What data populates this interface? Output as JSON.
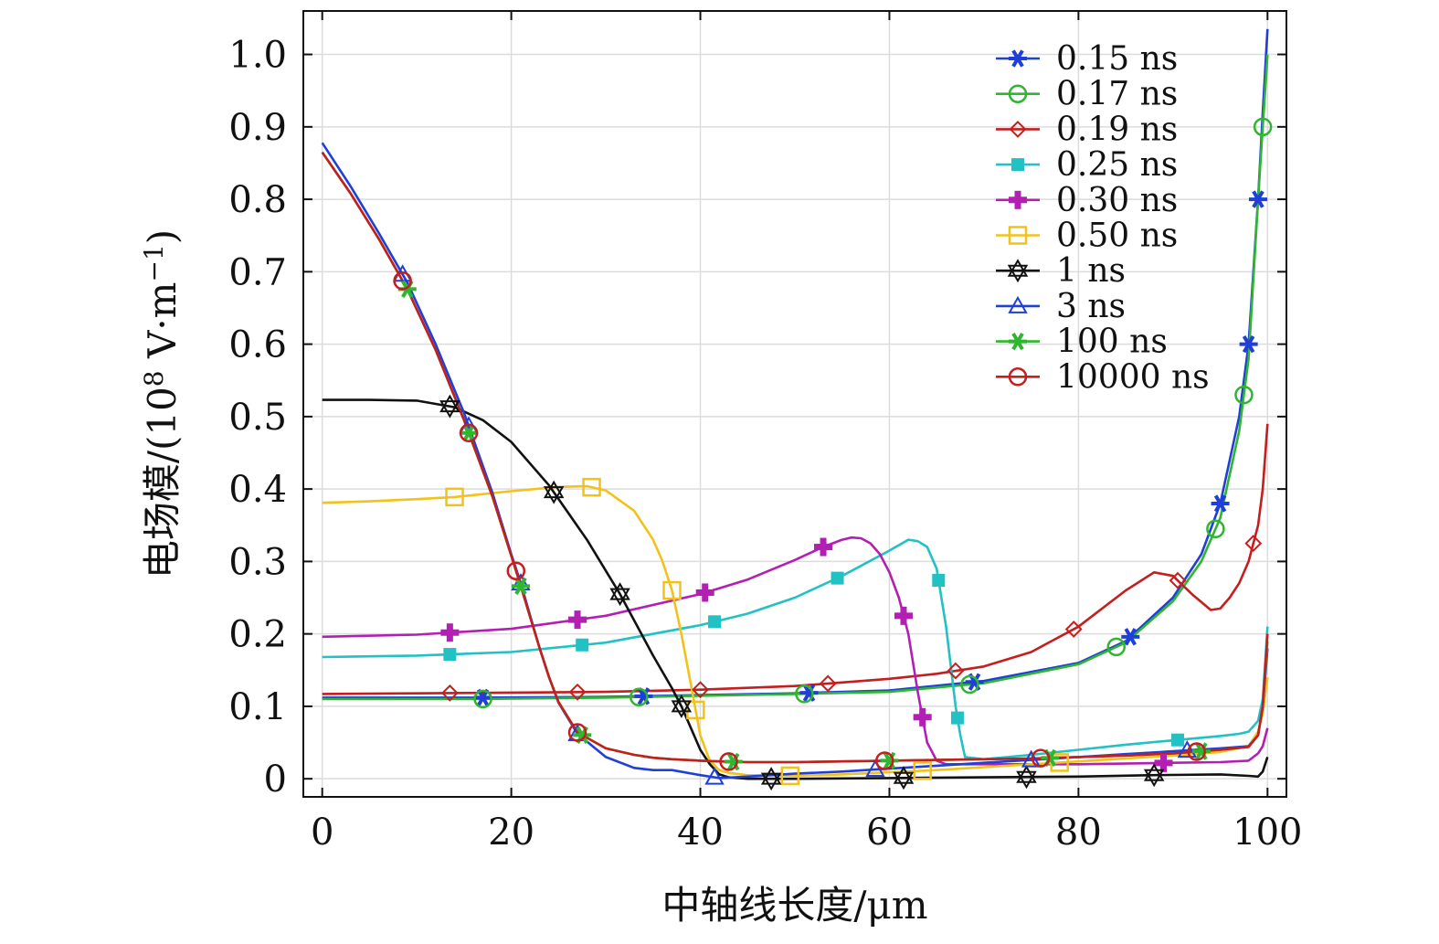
{
  "chart_data": {
    "type": "line",
    "title": "",
    "xlabel": "中轴线长度/μm",
    "ylabel": "电场模/(10⁸ V·m⁻¹)",
    "ylabel_parts": {
      "prefix": "电场模/(10",
      "exp1": "8",
      "mid": " V·m",
      "exp2": "−1",
      "suffix": ")"
    },
    "xlim": [
      -2,
      102
    ],
    "ylim": [
      -0.025,
      1.06
    ],
    "xticks": [
      0,
      20,
      40,
      60,
      80,
      100
    ],
    "xtick_labels": [
      "0",
      "20",
      "40",
      "60",
      "80",
      "100"
    ],
    "yticks": [
      0,
      0.1,
      0.2,
      0.3,
      0.4,
      0.5,
      0.6,
      0.7,
      0.8,
      0.9,
      1.0
    ],
    "ytick_labels": [
      "0",
      "0.1",
      "0.2",
      "0.3",
      "0.4",
      "0.5",
      "0.6",
      "0.7",
      "0.8",
      "0.9",
      "1.0"
    ],
    "grid": true,
    "legend_position": "top-right",
    "series": [
      {
        "name": "0.15 ns",
        "color": "#1f3fd8",
        "marker": "asterisk",
        "x": [
          0,
          10,
          16,
          30,
          50,
          60,
          70,
          80,
          85,
          90,
          93,
          95,
          97,
          98,
          99,
          99.5,
          100
        ],
        "y": [
          0.112,
          0.112,
          0.112,
          0.113,
          0.118,
          0.122,
          0.135,
          0.16,
          0.19,
          0.25,
          0.31,
          0.38,
          0.5,
          0.6,
          0.8,
          0.92,
          1.035
        ],
        "markers_x": [
          17,
          34,
          51.5,
          69,
          85.5,
          95,
          98,
          99
        ]
      },
      {
        "name": "0.17 ns",
        "color": "#2fb52f",
        "marker": "circle-open",
        "x": [
          0,
          10,
          16,
          30,
          50,
          60,
          70,
          80,
          85,
          90,
          93,
          95,
          97,
          98,
          99,
          99.5,
          100
        ],
        "y": [
          0.11,
          0.11,
          0.11,
          0.112,
          0.117,
          0.12,
          0.132,
          0.158,
          0.188,
          0.245,
          0.3,
          0.36,
          0.48,
          0.58,
          0.8,
          0.9,
          1.0
        ],
        "markers_x": [
          17,
          33.5,
          51,
          68.5,
          84,
          94.5,
          97.5,
          99.5
        ]
      },
      {
        "name": "0.19 ns",
        "color": "#c41e1e",
        "marker": "diamond-open",
        "x": [
          0,
          10,
          20,
          30,
          40,
          50,
          55,
          60,
          65,
          70,
          75,
          80,
          85,
          88,
          90,
          92,
          94,
          95,
          96,
          97,
          98,
          99,
          99.5,
          100
        ],
        "y": [
          0.117,
          0.118,
          0.119,
          0.12,
          0.123,
          0.128,
          0.133,
          0.138,
          0.145,
          0.155,
          0.175,
          0.21,
          0.26,
          0.285,
          0.28,
          0.255,
          0.233,
          0.235,
          0.25,
          0.27,
          0.3,
          0.35,
          0.4,
          0.49
        ],
        "markers_x": [
          13.5,
          27,
          40,
          53.5,
          67,
          79.5,
          90.5,
          98.5
        ]
      },
      {
        "name": "0.25 ns",
        "color": "#22c1c3",
        "marker": "square-filled",
        "x": [
          0,
          10,
          20,
          30,
          40,
          45,
          50,
          55,
          60,
          62,
          63,
          64,
          65,
          66,
          67,
          67.5,
          68,
          70,
          75,
          80,
          85,
          90,
          95,
          97,
          98,
          99,
          99.5,
          100
        ],
        "y": [
          0.168,
          0.17,
          0.175,
          0.188,
          0.212,
          0.228,
          0.25,
          0.28,
          0.315,
          0.33,
          0.328,
          0.32,
          0.29,
          0.21,
          0.1,
          0.06,
          0.03,
          0.027,
          0.033,
          0.04,
          0.047,
          0.053,
          0.059,
          0.062,
          0.065,
          0.08,
          0.11,
          0.21
        ],
        "markers_x": [
          13.5,
          27.5,
          41.5,
          54.5,
          65.2,
          67.2,
          90.5
        ]
      },
      {
        "name": "0.30 ns",
        "color": "#b31fb3",
        "marker": "plus-filled",
        "x": [
          0,
          10,
          20,
          30,
          40,
          45,
          50,
          53,
          55,
          56,
          57,
          58,
          59,
          60,
          61,
          62,
          63,
          64,
          65,
          66,
          70,
          80,
          90,
          95,
          98,
          99,
          99.5,
          100
        ],
        "y": [
          0.196,
          0.199,
          0.207,
          0.225,
          0.255,
          0.275,
          0.302,
          0.32,
          0.33,
          0.333,
          0.332,
          0.325,
          0.31,
          0.285,
          0.25,
          0.2,
          0.12,
          0.05,
          0.025,
          0.02,
          0.02,
          0.02,
          0.022,
          0.023,
          0.025,
          0.035,
          0.045,
          0.07
        ],
        "markers_x": [
          13.5,
          27,
          40.5,
          53,
          61.5,
          63.5,
          89
        ]
      },
      {
        "name": "0.50 ns",
        "color": "#f2c21b",
        "marker": "square-open",
        "x": [
          0,
          5,
          10,
          14,
          20,
          25,
          28,
          30,
          33,
          35,
          36,
          37,
          38,
          39,
          40,
          41,
          42,
          43,
          45,
          50,
          55,
          60,
          65,
          70,
          75,
          80,
          90,
          95,
          98,
          99,
          99.5,
          100
        ],
        "y": [
          0.381,
          0.383,
          0.386,
          0.389,
          0.397,
          0.403,
          0.404,
          0.398,
          0.37,
          0.33,
          0.3,
          0.26,
          0.2,
          0.13,
          0.06,
          0.025,
          0.012,
          0.008,
          0.005,
          0.004,
          0.006,
          0.009,
          0.012,
          0.016,
          0.02,
          0.024,
          0.032,
          0.037,
          0.045,
          0.065,
          0.09,
          0.14
        ],
        "markers_x": [
          14,
          28.5,
          37,
          39.5,
          49.5,
          63.5,
          78
        ]
      },
      {
        "name": "1 ns",
        "color": "#111111",
        "marker": "star-open",
        "x": [
          0,
          5,
          10,
          14,
          17,
          20,
          24,
          28,
          31.5,
          35,
          37,
          38,
          39,
          40,
          41,
          42,
          43,
          45,
          50,
          60,
          70,
          80,
          88,
          95,
          98,
          99,
          99.5,
          100
        ],
        "y": [
          0.523,
          0.523,
          0.522,
          0.513,
          0.495,
          0.465,
          0.405,
          0.33,
          0.255,
          0.17,
          0.125,
          0.1,
          0.07,
          0.04,
          0.02,
          0.006,
          0.002,
          0,
          0,
          0.001,
          0.002,
          0.003,
          0.005,
          0.006,
          0.004,
          0.003,
          0.01,
          0.03
        ],
        "markers_x": [
          13.5,
          24.5,
          31.5,
          38,
          47.5,
          61.5,
          74.5,
          88
        ]
      },
      {
        "name": "3 ns",
        "color": "#1f3fd8",
        "marker": "triangle-open",
        "x": [
          0,
          3,
          6,
          9,
          12,
          15,
          18,
          20,
          21,
          22,
          23,
          24,
          25,
          27,
          30,
          33,
          35,
          37,
          40,
          42,
          45,
          50,
          55,
          60,
          65,
          70,
          75,
          80,
          85,
          90,
          95,
          98,
          99,
          99.5,
          100
        ],
        "y": [
          0.878,
          0.818,
          0.753,
          0.685,
          0.6,
          0.505,
          0.395,
          0.31,
          0.27,
          0.225,
          0.18,
          0.14,
          0.105,
          0.062,
          0.03,
          0.015,
          0.012,
          0.012,
          0.005,
          0.001,
          0.003,
          0.007,
          0.01,
          0.014,
          0.018,
          0.022,
          0.026,
          0.03,
          0.034,
          0.038,
          0.042,
          0.045,
          0.06,
          0.1,
          0.18
        ],
        "markers_x": [
          8.5,
          15.5,
          21,
          27,
          41.5,
          58.5,
          75,
          91.5
        ]
      },
      {
        "name": "100 ns",
        "color": "#2fb52f",
        "marker": "asterisk",
        "x": [
          0,
          3,
          6,
          9,
          12,
          15,
          18,
          20,
          21,
          22,
          23,
          24,
          25,
          27,
          30,
          33,
          35,
          37,
          40,
          42,
          45,
          50,
          55,
          60,
          65,
          70,
          75,
          80,
          85,
          90,
          95,
          98,
          99,
          99.5,
          100
        ],
        "y": [
          0.865,
          0.808,
          0.745,
          0.676,
          0.592,
          0.495,
          0.39,
          0.308,
          0.266,
          0.223,
          0.18,
          0.14,
          0.106,
          0.064,
          0.042,
          0.033,
          0.029,
          0.027,
          0.025,
          0.024,
          0.023,
          0.023,
          0.024,
          0.025,
          0.026,
          0.027,
          0.028,
          0.03,
          0.032,
          0.035,
          0.04,
          0.044,
          0.06,
          0.1,
          0.19
        ],
        "markers_x": [
          9,
          15.5,
          21,
          27.5,
          43.5,
          60,
          77,
          93
        ]
      },
      {
        "name": "10000 ns",
        "color": "#c41e1e",
        "marker": "circle-open",
        "x": [
          0,
          3,
          6,
          9,
          12,
          15,
          18,
          20,
          21,
          22,
          23,
          24,
          25,
          27,
          30,
          33,
          35,
          37,
          40,
          42,
          45,
          50,
          55,
          60,
          65,
          70,
          75,
          80,
          85,
          90,
          95,
          98,
          99,
          99.5,
          100
        ],
        "y": [
          0.865,
          0.808,
          0.745,
          0.676,
          0.592,
          0.495,
          0.39,
          0.308,
          0.266,
          0.223,
          0.18,
          0.14,
          0.106,
          0.064,
          0.042,
          0.033,
          0.029,
          0.027,
          0.025,
          0.024,
          0.023,
          0.023,
          0.024,
          0.025,
          0.026,
          0.027,
          0.028,
          0.03,
          0.032,
          0.035,
          0.04,
          0.044,
          0.06,
          0.1,
          0.2
        ],
        "markers_x": [
          8.5,
          15.5,
          20.5,
          27,
          43,
          59.5,
          76,
          92.5
        ]
      }
    ]
  }
}
